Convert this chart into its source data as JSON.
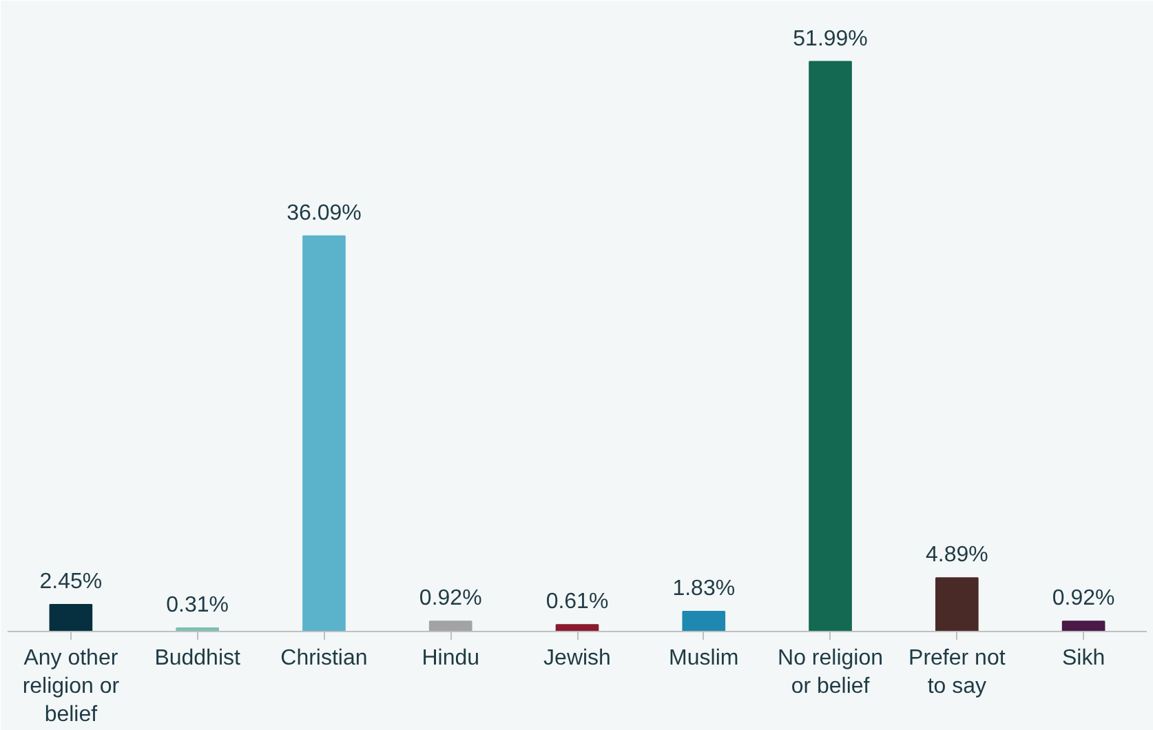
{
  "chart_data": {
    "type": "bar",
    "categories": [
      "Any other religion or belief",
      "Buddhist",
      "Christian",
      "Hindu",
      "Jewish",
      "Muslim",
      "No religion or belief",
      "Prefer not to say",
      "Sikh"
    ],
    "values": [
      2.45,
      0.31,
      36.09,
      0.92,
      0.61,
      1.83,
      51.99,
      4.89,
      0.92
    ],
    "colors": [
      "#06303f",
      "#7fbfb0",
      "#5bb3cb",
      "#a3a3a3",
      "#8b1a2e",
      "#1f88b0",
      "#136951",
      "#4a2a27",
      "#4b1a48"
    ],
    "value_labels": [
      "2.45%",
      "0.31%",
      "36.09%",
      "0.92%",
      "0.61%",
      "1.83%",
      "51.99%",
      "4.89%",
      "0.92%"
    ]
  }
}
